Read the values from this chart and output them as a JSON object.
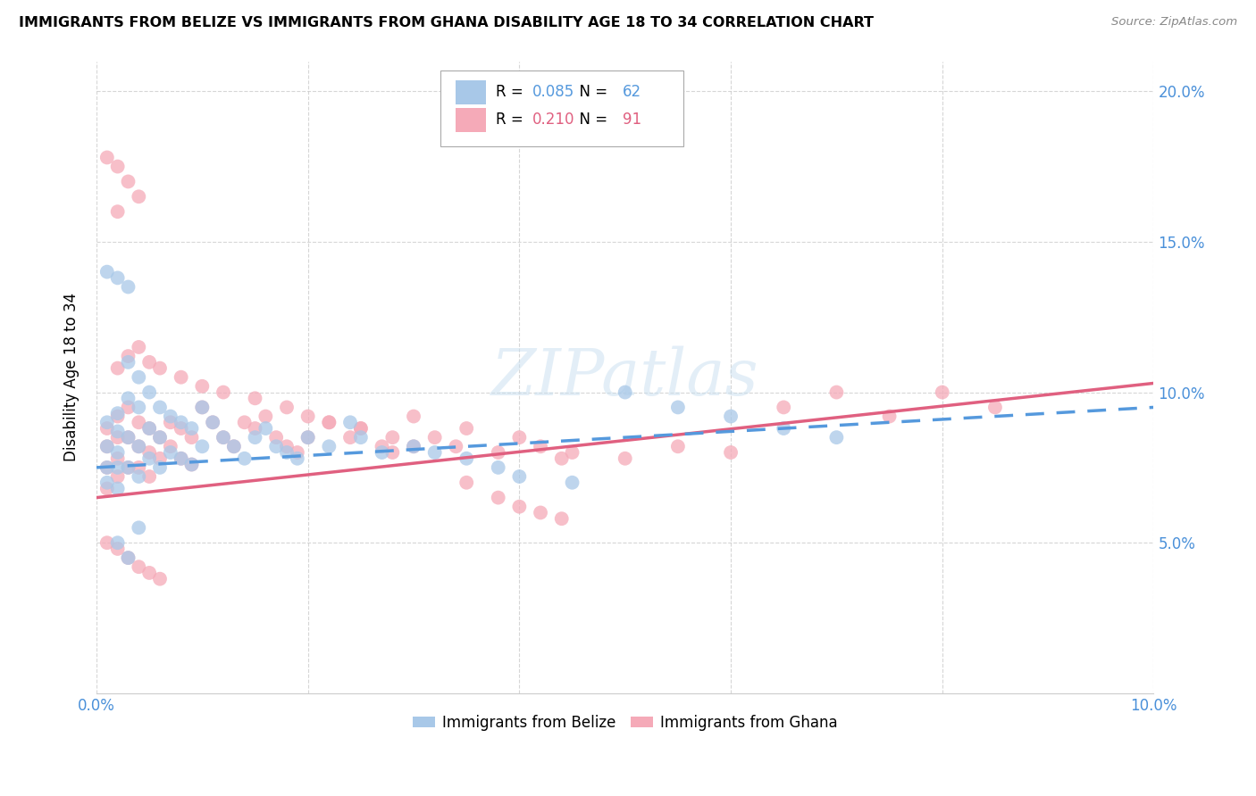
{
  "title": "IMMIGRANTS FROM BELIZE VS IMMIGRANTS FROM GHANA DISABILITY AGE 18 TO 34 CORRELATION CHART",
  "source": "Source: ZipAtlas.com",
  "ylabel": "Disability Age 18 to 34",
  "xlim": [
    0.0,
    0.1
  ],
  "ylim": [
    0.0,
    0.21
  ],
  "ytick_vals": [
    0.05,
    0.1,
    0.15,
    0.2
  ],
  "ytick_labels": [
    "5.0%",
    "10.0%",
    "15.0%",
    "20.0%"
  ],
  "belize_R": 0.085,
  "belize_N": 62,
  "ghana_R": 0.21,
  "ghana_N": 91,
  "belize_color": "#a8c8e8",
  "ghana_color": "#f5aab8",
  "belize_line_color": "#5599dd",
  "ghana_line_color": "#e06080",
  "legend_label_belize": "Immigrants from Belize",
  "legend_label_ghana": "Immigrants from Ghana",
  "belize_line_x0": 0.0,
  "belize_line_y0": 0.075,
  "belize_line_x1": 0.1,
  "belize_line_y1": 0.095,
  "ghana_line_x0": 0.0,
  "ghana_line_y0": 0.065,
  "ghana_line_x1": 0.1,
  "ghana_line_y1": 0.103,
  "belize_x": [
    0.001,
    0.001,
    0.001,
    0.001,
    0.002,
    0.002,
    0.002,
    0.002,
    0.002,
    0.003,
    0.003,
    0.003,
    0.003,
    0.004,
    0.004,
    0.004,
    0.004,
    0.005,
    0.005,
    0.005,
    0.006,
    0.006,
    0.006,
    0.007,
    0.007,
    0.008,
    0.008,
    0.009,
    0.009,
    0.01,
    0.01,
    0.011,
    0.012,
    0.013,
    0.014,
    0.015,
    0.016,
    0.017,
    0.018,
    0.019,
    0.02,
    0.022,
    0.024,
    0.025,
    0.027,
    0.03,
    0.032,
    0.035,
    0.038,
    0.04,
    0.045,
    0.05,
    0.055,
    0.06,
    0.065,
    0.07,
    0.001,
    0.002,
    0.003,
    0.004,
    0.002,
    0.003
  ],
  "belize_y": [
    0.09,
    0.082,
    0.075,
    0.07,
    0.093,
    0.087,
    0.08,
    0.075,
    0.068,
    0.11,
    0.098,
    0.085,
    0.075,
    0.105,
    0.095,
    0.082,
    0.072,
    0.1,
    0.088,
    0.078,
    0.095,
    0.085,
    0.075,
    0.092,
    0.08,
    0.09,
    0.078,
    0.088,
    0.076,
    0.095,
    0.082,
    0.09,
    0.085,
    0.082,
    0.078,
    0.085,
    0.088,
    0.082,
    0.08,
    0.078,
    0.085,
    0.082,
    0.09,
    0.085,
    0.08,
    0.082,
    0.08,
    0.078,
    0.075,
    0.072,
    0.07,
    0.1,
    0.095,
    0.092,
    0.088,
    0.085,
    0.14,
    0.138,
    0.135,
    0.055,
    0.05,
    0.045
  ],
  "ghana_x": [
    0.001,
    0.001,
    0.001,
    0.001,
    0.002,
    0.002,
    0.002,
    0.002,
    0.003,
    0.003,
    0.003,
    0.004,
    0.004,
    0.004,
    0.005,
    0.005,
    0.005,
    0.006,
    0.006,
    0.007,
    0.007,
    0.008,
    0.008,
    0.009,
    0.009,
    0.01,
    0.011,
    0.012,
    0.013,
    0.014,
    0.015,
    0.016,
    0.017,
    0.018,
    0.019,
    0.02,
    0.022,
    0.024,
    0.025,
    0.027,
    0.028,
    0.03,
    0.032,
    0.034,
    0.035,
    0.038,
    0.04,
    0.042,
    0.044,
    0.045,
    0.05,
    0.055,
    0.06,
    0.065,
    0.07,
    0.075,
    0.08,
    0.085,
    0.002,
    0.003,
    0.004,
    0.005,
    0.006,
    0.008,
    0.01,
    0.012,
    0.015,
    0.018,
    0.02,
    0.022,
    0.025,
    0.028,
    0.03,
    0.035,
    0.038,
    0.04,
    0.042,
    0.044,
    0.001,
    0.002,
    0.003,
    0.004,
    0.002,
    0.001,
    0.002,
    0.003,
    0.004,
    0.005,
    0.006
  ],
  "ghana_y": [
    0.088,
    0.082,
    0.075,
    0.068,
    0.092,
    0.085,
    0.078,
    0.072,
    0.095,
    0.085,
    0.075,
    0.09,
    0.082,
    0.075,
    0.088,
    0.08,
    0.072,
    0.085,
    0.078,
    0.09,
    0.082,
    0.088,
    0.078,
    0.085,
    0.076,
    0.095,
    0.09,
    0.085,
    0.082,
    0.09,
    0.088,
    0.092,
    0.085,
    0.082,
    0.08,
    0.085,
    0.09,
    0.085,
    0.088,
    0.082,
    0.08,
    0.092,
    0.085,
    0.082,
    0.088,
    0.08,
    0.085,
    0.082,
    0.078,
    0.08,
    0.078,
    0.082,
    0.08,
    0.095,
    0.1,
    0.092,
    0.1,
    0.095,
    0.108,
    0.112,
    0.115,
    0.11,
    0.108,
    0.105,
    0.102,
    0.1,
    0.098,
    0.095,
    0.092,
    0.09,
    0.088,
    0.085,
    0.082,
    0.07,
    0.065,
    0.062,
    0.06,
    0.058,
    0.178,
    0.175,
    0.17,
    0.165,
    0.16,
    0.05,
    0.048,
    0.045,
    0.042,
    0.04,
    0.038
  ]
}
